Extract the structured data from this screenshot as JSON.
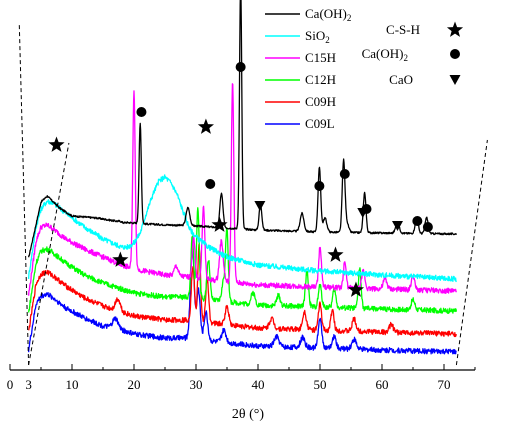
{
  "chart_data": {
    "type": "line",
    "title": "",
    "xlabel": "2θ (°)",
    "ylabel": "",
    "xlim": [
      0,
      75
    ],
    "x_ticks": [
      "0",
      "3",
      "10",
      "20",
      "30",
      "40",
      "50",
      "60",
      "70"
    ],
    "x_tick_values": [
      0,
      3,
      10,
      20,
      30,
      40,
      50,
      60,
      70
    ],
    "y_ticks": [],
    "grid": false,
    "legend_position": "top-center",
    "series": [
      {
        "name": "Ca(OH)₂",
        "color": "#000000",
        "offset": 130,
        "background": [
          [
            3,
            10
          ],
          [
            5,
            66
          ],
          [
            6,
            72
          ],
          [
            8,
            60
          ],
          [
            10,
            52
          ],
          [
            14,
            50
          ],
          [
            18,
            46
          ],
          [
            22,
            44
          ],
          [
            26,
            43
          ],
          [
            30,
            42
          ],
          [
            40,
            38
          ],
          [
            50,
            36
          ],
          [
            60,
            35
          ],
          [
            72,
            34
          ]
        ],
        "peaks": [
          [
            18.0,
            6,
            0.3
          ],
          [
            28.7,
            18,
            0.3
          ],
          [
            34.1,
            34,
            0.25
          ],
          [
            47.1,
            18,
            0.3
          ],
          [
            50.8,
            14,
            0.3
          ],
          [
            54.3,
            10,
            0.3
          ],
          [
            18.05,
            -6,
            0.3
          ],
          [
            21.0,
            100,
            0.18
          ],
          [
            37.2,
            246,
            0.18
          ],
          [
            40.4,
            26,
            0.22
          ],
          [
            49.9,
            64,
            0.22
          ],
          [
            53.8,
            70,
            0.22
          ],
          [
            57.2,
            40,
            0.22
          ],
          [
            62.5,
            10,
            0.3
          ],
          [
            65.6,
            16,
            0.25
          ],
          [
            67.2,
            16,
            0.25
          ]
        ]
      },
      {
        "name": "SiO₂",
        "color": "#00ffff",
        "offset": 111,
        "background": [
          [
            3,
            10
          ],
          [
            4.2,
            60
          ],
          [
            5,
            78
          ],
          [
            6,
            86
          ],
          [
            7,
            84
          ],
          [
            9,
            74
          ],
          [
            12,
            60
          ],
          [
            15,
            48
          ],
          [
            18,
            40
          ],
          [
            19,
            40
          ],
          [
            20,
            44
          ],
          [
            21,
            54
          ],
          [
            22,
            74
          ],
          [
            23,
            92
          ],
          [
            24,
            106
          ],
          [
            25,
            110
          ],
          [
            26,
            104
          ],
          [
            27,
            92
          ],
          [
            28,
            74
          ],
          [
            29,
            58
          ],
          [
            30,
            50
          ],
          [
            32,
            40
          ],
          [
            35,
            30
          ],
          [
            40,
            22
          ],
          [
            50,
            16
          ],
          [
            60,
            12
          ],
          [
            72,
            8
          ]
        ],
        "peaks": []
      },
      {
        "name": "C15H",
        "color": "#ff00ff",
        "offset": 93,
        "background": [
          [
            3,
            10
          ],
          [
            4.2,
            64
          ],
          [
            5,
            78
          ],
          [
            6,
            80
          ],
          [
            7,
            76
          ],
          [
            9,
            66
          ],
          [
            12,
            56
          ],
          [
            15,
            48
          ],
          [
            18,
            40
          ],
          [
            20,
            36
          ],
          [
            25,
            30
          ],
          [
            29,
            28
          ],
          [
            31,
            26
          ],
          [
            40,
            20
          ],
          [
            50,
            18
          ],
          [
            60,
            16
          ],
          [
            72,
            14
          ]
        ],
        "peaks": [
          [
            20.0,
            176,
            0.2
          ],
          [
            26.8,
            10,
            0.3
          ],
          [
            29.6,
            40,
            0.22
          ],
          [
            31.2,
            72,
            0.22
          ],
          [
            34.1,
            40,
            0.3
          ],
          [
            35.9,
            200,
            0.2
          ],
          [
            50.0,
            40,
            0.22
          ],
          [
            54.0,
            26,
            0.22
          ],
          [
            57.0,
            18,
            0.25
          ],
          [
            60.5,
            10,
            0.3
          ],
          [
            65.0,
            14,
            0.25
          ]
        ]
      },
      {
        "name": "C12H",
        "color": "#00ff00",
        "offset": 75,
        "background": [
          [
            3,
            10
          ],
          [
            4.2,
            60
          ],
          [
            5,
            72
          ],
          [
            6,
            74
          ],
          [
            7,
            70
          ],
          [
            9,
            60
          ],
          [
            12,
            48
          ],
          [
            15,
            40
          ],
          [
            18,
            34
          ],
          [
            20,
            30
          ],
          [
            25,
            26
          ],
          [
            29,
            26
          ],
          [
            31,
            24
          ],
          [
            40,
            18
          ],
          [
            50,
            16
          ],
          [
            60,
            14
          ],
          [
            72,
            12
          ]
        ],
        "peaks": [
          [
            29.4,
            60,
            0.22
          ],
          [
            30.3,
            90,
            0.22
          ],
          [
            32.0,
            40,
            0.25
          ],
          [
            34.5,
            22,
            0.3
          ],
          [
            35.0,
            70,
            0.2
          ],
          [
            39.2,
            12,
            0.3
          ],
          [
            43.3,
            10,
            0.3
          ],
          [
            47.9,
            34,
            0.25
          ],
          [
            50.0,
            22,
            0.25
          ],
          [
            52.3,
            18,
            0.25
          ],
          [
            56.4,
            40,
            0.22
          ],
          [
            65.0,
            10,
            0.3
          ]
        ]
      },
      {
        "name": "C09H",
        "color": "#ff0000",
        "offset": 56,
        "background": [
          [
            3,
            10
          ],
          [
            4.2,
            58
          ],
          [
            5,
            68
          ],
          [
            6,
            70
          ],
          [
            7,
            66
          ],
          [
            9,
            56
          ],
          [
            12,
            44
          ],
          [
            15,
            36
          ],
          [
            18,
            30
          ],
          [
            20,
            26
          ],
          [
            25,
            22
          ],
          [
            29,
            22
          ],
          [
            31,
            20
          ],
          [
            40,
            14
          ],
          [
            50,
            12
          ],
          [
            60,
            10
          ],
          [
            72,
            8
          ]
        ],
        "peaks": [
          [
            17.4,
            12,
            0.4
          ],
          [
            29.5,
            54,
            0.25
          ],
          [
            30.5,
            76,
            0.22
          ],
          [
            31.8,
            42,
            0.25
          ],
          [
            35.0,
            18,
            0.3
          ],
          [
            42.2,
            10,
            0.35
          ],
          [
            47.5,
            18,
            0.3
          ],
          [
            50.0,
            26,
            0.25
          ],
          [
            52.0,
            20,
            0.25
          ],
          [
            55.5,
            12,
            0.3
          ],
          [
            61.5,
            8,
            0.3
          ]
        ]
      },
      {
        "name": "C09L",
        "color": "#0000ff",
        "offset": 40,
        "background": [
          [
            3,
            8
          ],
          [
            4.2,
            54
          ],
          [
            5,
            62
          ],
          [
            6,
            64
          ],
          [
            7,
            60
          ],
          [
            9,
            50
          ],
          [
            12,
            40
          ],
          [
            15,
            32
          ],
          [
            18,
            28
          ],
          [
            20,
            24
          ],
          [
            25,
            20
          ],
          [
            29,
            20
          ],
          [
            31,
            18
          ],
          [
            40,
            12
          ],
          [
            50,
            10
          ],
          [
            60,
            8
          ],
          [
            72,
            6
          ]
        ],
        "peaks": [
          [
            17.0,
            10,
            0.45
          ],
          [
            29.4,
            94,
            0.3
          ],
          [
            30.4,
            50,
            0.28
          ],
          [
            31.6,
            28,
            0.3
          ],
          [
            34.5,
            12,
            0.35
          ],
          [
            43.0,
            10,
            0.4
          ],
          [
            47.2,
            10,
            0.35
          ],
          [
            50.0,
            28,
            0.3
          ],
          [
            52.3,
            12,
            0.3
          ],
          [
            55.5,
            10,
            0.35
          ]
        ]
      }
    ]
  },
  "legend": {
    "entries": [
      {
        "label": "Ca(OH)",
        "sub": "2",
        "color": "#000000"
      },
      {
        "label": "SiO",
        "sub": "2",
        "color": "#00ffff"
      },
      {
        "label": "C15H",
        "sub": "",
        "color": "#ff00ff"
      },
      {
        "label": "C12H",
        "sub": "",
        "color": "#00ff00"
      },
      {
        "label": "C09H",
        "sub": "",
        "color": "#ff0000"
      },
      {
        "label": "C09L",
        "sub": "",
        "color": "#0000ff"
      }
    ]
  },
  "phase_legend": {
    "entries": [
      {
        "label": "C-S-H",
        "sub": "",
        "symbol": "star"
      },
      {
        "label": "Ca(OH)",
        "sub": "2",
        "symbol": "circle"
      },
      {
        "label": "CaO",
        "sub": "",
        "symbol": "triangle"
      }
    ]
  },
  "markers": [
    {
      "symbol": "star",
      "x": 7.5,
      "y": 145
    },
    {
      "symbol": "star",
      "x": 17.8,
      "y": 260
    },
    {
      "symbol": "star",
      "x": 31.6,
      "y": 127
    },
    {
      "symbol": "star",
      "x": 33.8,
      "y": 225
    },
    {
      "symbol": "star",
      "x": 52.5,
      "y": 255
    },
    {
      "symbol": "star",
      "x": 55.8,
      "y": 290
    },
    {
      "symbol": "circle",
      "x": 21.2,
      "y": 112
    },
    {
      "symbol": "circle",
      "x": 32.3,
      "y": 184
    },
    {
      "symbol": "circle",
      "x": 37.2,
      "y": 67
    },
    {
      "symbol": "circle",
      "x": 49.9,
      "y": 186
    },
    {
      "symbol": "circle",
      "x": 54.0,
      "y": 174
    },
    {
      "symbol": "circle",
      "x": 57.5,
      "y": 209
    },
    {
      "symbol": "circle",
      "x": 65.7,
      "y": 221
    },
    {
      "symbol": "circle",
      "x": 67.4,
      "y": 227
    },
    {
      "symbol": "triangle",
      "x": 40.3,
      "y": 206
    },
    {
      "symbol": "triangle",
      "x": 56.9,
      "y": 213
    },
    {
      "symbol": "triangle",
      "x": 62.5,
      "y": 226
    }
  ]
}
